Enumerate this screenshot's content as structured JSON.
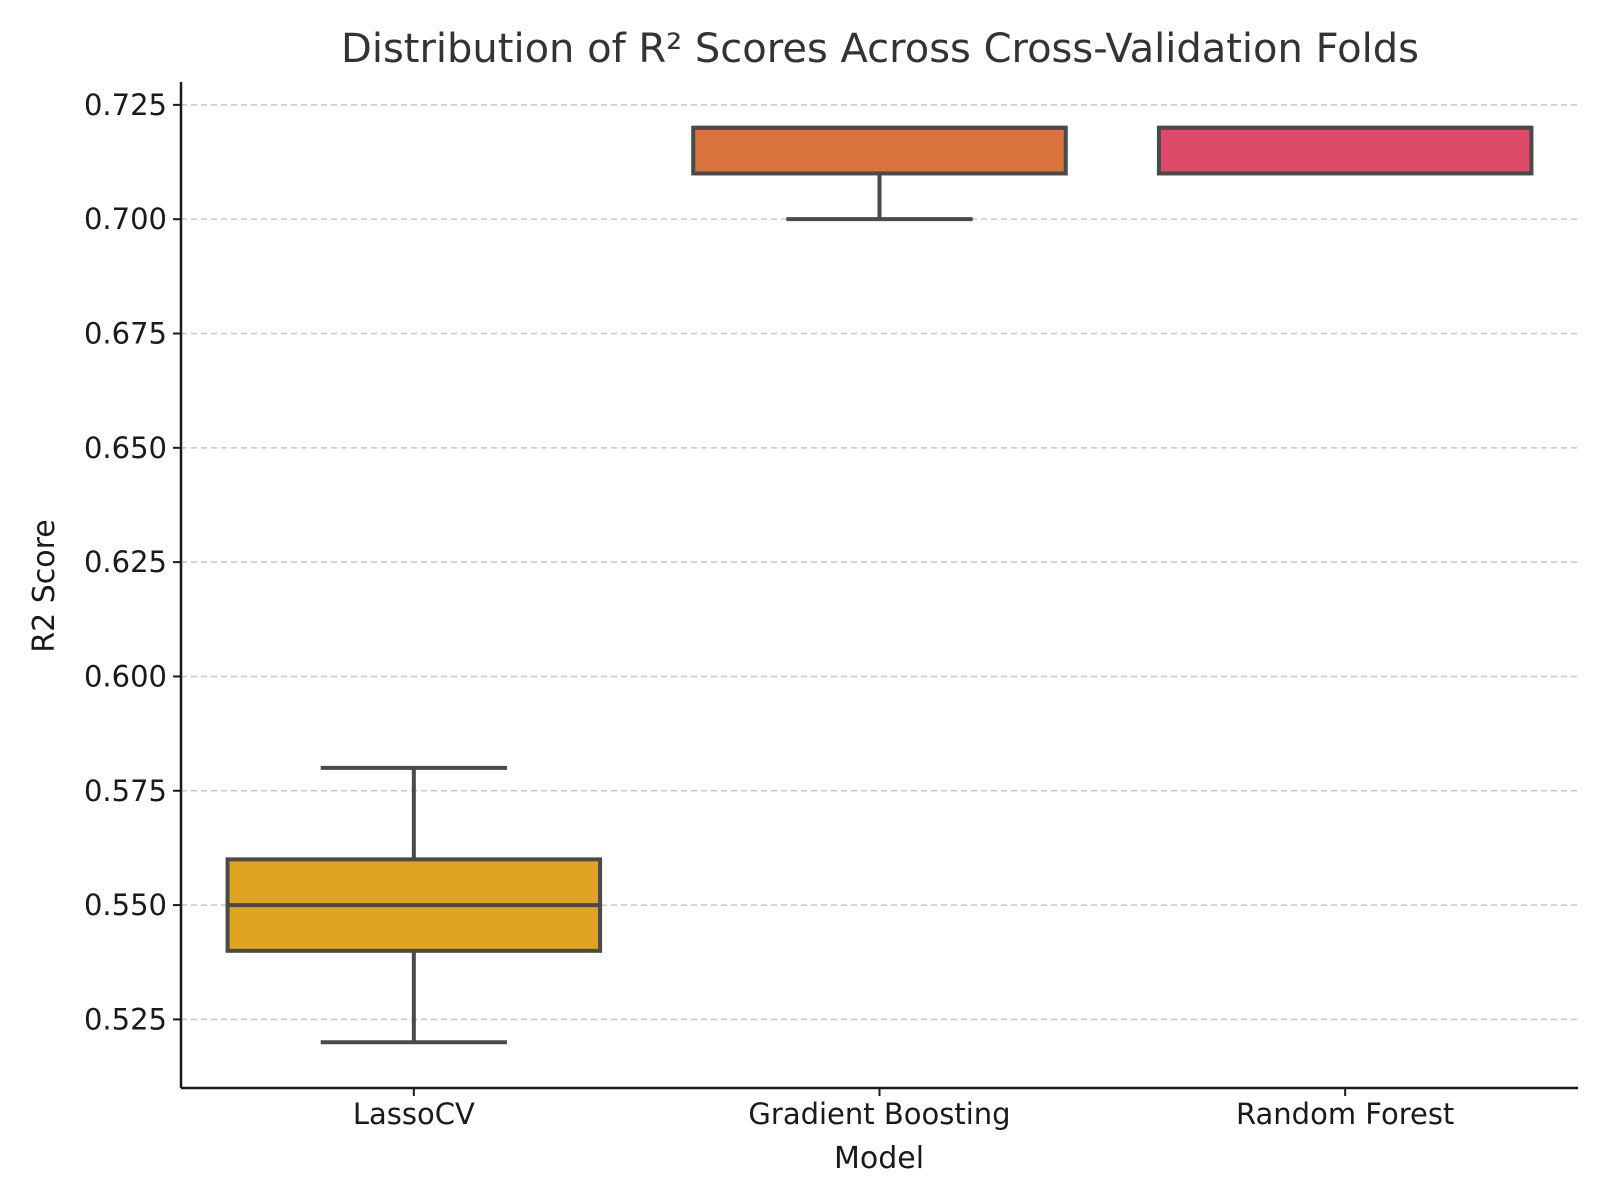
{
  "chart_data": {
    "type": "box",
    "title": "Distribution of R² Scores Across Cross-Validation Folds",
    "xlabel": "Model",
    "ylabel": "R2 Score",
    "ylim": [
      0.51,
      0.73
    ],
    "yticks": [
      "0.525",
      "0.550",
      "0.575",
      "0.600",
      "0.625",
      "0.650",
      "0.675",
      "0.700",
      "0.725"
    ],
    "grid": "horizontal dashed",
    "categories": [
      "LassoCV",
      "Gradient Boosting",
      "Random Forest"
    ],
    "boxes": [
      {
        "category": "LassoCV",
        "whisker_low": 0.52,
        "q1": 0.54,
        "median": 0.55,
        "q3": 0.56,
        "whisker_high": 0.58,
        "color": "#DFA420"
      },
      {
        "category": "Gradient Boosting",
        "whisker_low": 0.7,
        "q1": 0.71,
        "median": 0.72,
        "q3": 0.72,
        "whisker_high": 0.72,
        "color": "#DA723C"
      },
      {
        "category": "Random Forest",
        "whisker_low": 0.71,
        "q1": 0.71,
        "median": 0.72,
        "q3": 0.72,
        "whisker_high": 0.72,
        "color": "#DD4B68"
      }
    ]
  }
}
